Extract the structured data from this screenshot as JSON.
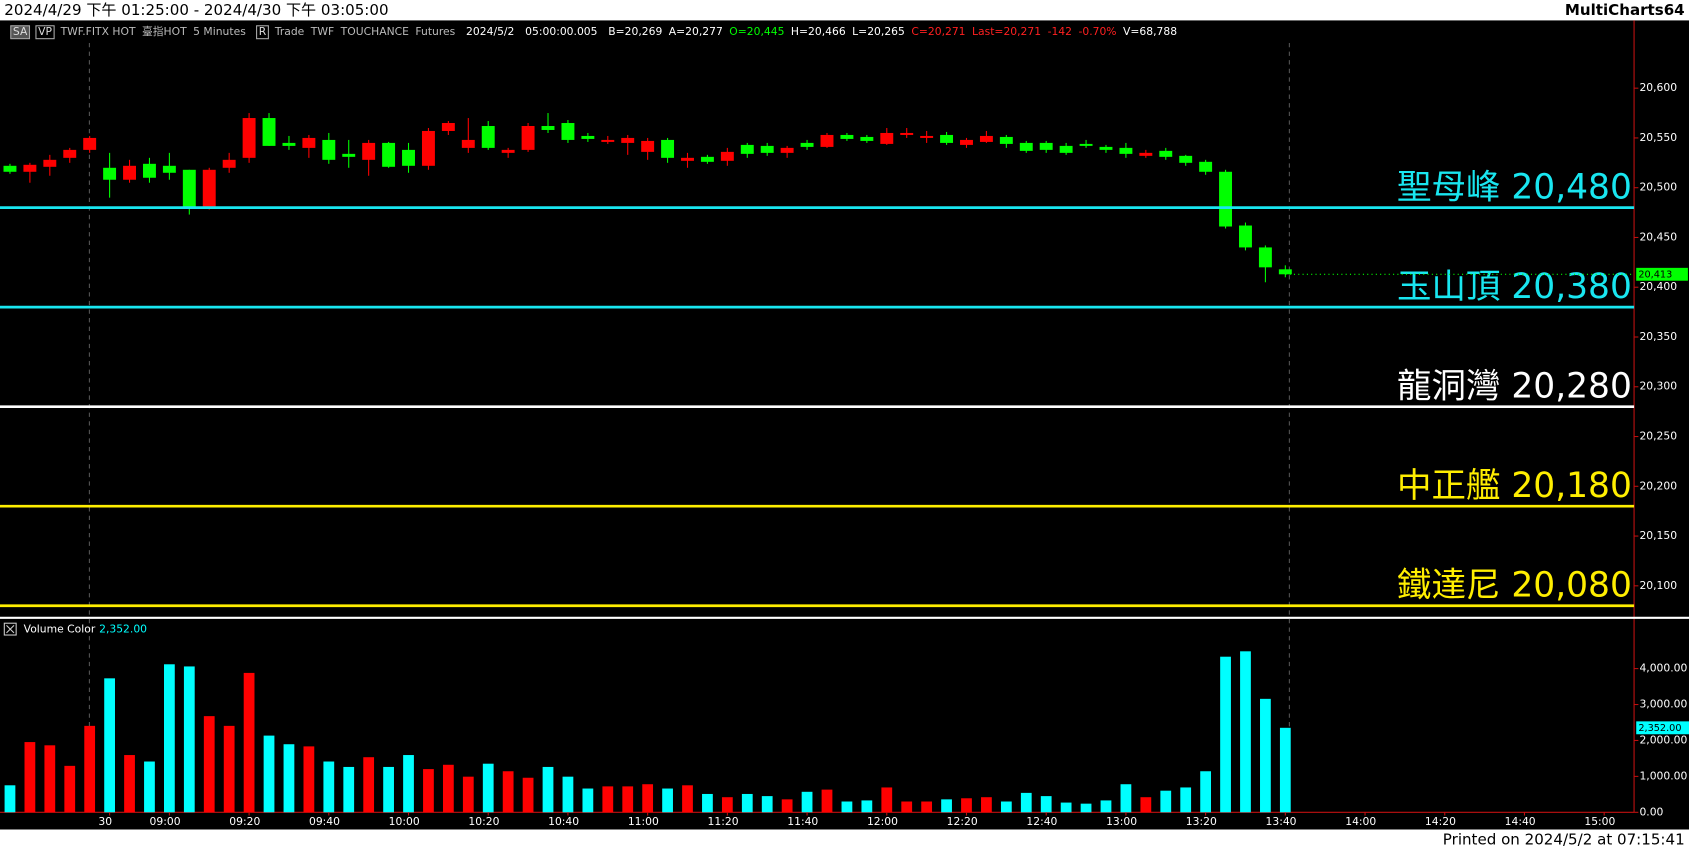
{
  "window": {
    "title": "2024/4/29 下午 01:25:00 - 2024/4/30 下午 03:05:00",
    "app": "MultiCharts64",
    "footer": "Printed on 2024/5/2 at 07:15:41"
  },
  "toolbar": [
    {
      "text": "SA",
      "color": "#dddddd"
    },
    {
      "text": "VP",
      "color": "#dddddd"
    },
    {
      "text": "TWF.FITX HOT",
      "color": "#bbbbbb"
    },
    {
      "text": "臺指HOT",
      "color": "#bbbbbb"
    },
    {
      "text": "5 Minutes",
      "color": "#bbbbbb"
    },
    {
      "text": "R",
      "color": "#dddddd"
    },
    {
      "text": "Trade",
      "color": "#bbbbbb"
    },
    {
      "text": "TWF",
      "color": "#bbbbbb"
    },
    {
      "text": "TOUCHANCE",
      "color": "#bbbbbb"
    },
    {
      "text": "Futures",
      "color": "#bbbbbb"
    },
    {
      "text": "2024/5/2",
      "color": "#ffffff"
    },
    {
      "text": "05:00:00.005",
      "color": "#ffffff"
    },
    {
      "text": "B=20,269",
      "color": "#ffffff"
    },
    {
      "text": "A=20,277",
      "color": "#ffffff"
    },
    {
      "text": "O=20,445",
      "color": "#00ff00"
    },
    {
      "text": "H=20,466",
      "color": "#ffffff"
    },
    {
      "text": "L=20,265",
      "color": "#ffffff"
    },
    {
      "text": "C=20,271",
      "color": "#ff2020"
    },
    {
      "text": "Last=20,271",
      "color": "#ff2020"
    },
    {
      "text": "-142",
      "color": "#ff2020"
    },
    {
      "text": "-0.70%",
      "color": "#ff2020"
    },
    {
      "text": "V=68,788",
      "color": "#ffffff"
    }
  ],
  "chart_data": [
    {
      "type": "candlestick",
      "up_color": "#ff0000",
      "down_color": "#00ff00",
      "open": [
        20522,
        20516,
        20521,
        20530,
        20538,
        20520,
        20508,
        20524,
        20522,
        20518,
        20481,
        20520,
        20530,
        20570,
        20545,
        20540,
        20548,
        20534,
        20528,
        20545,
        20538,
        20522,
        20557,
        20540,
        20562,
        20535,
        20538,
        20562,
        20565,
        20552,
        20546,
        20545,
        20536,
        20548,
        20527,
        20531,
        20527,
        20543,
        20542,
        20535,
        20545,
        20541,
        20553,
        20551,
        20544,
        20553,
        20550,
        20553,
        20543,
        20546,
        20551,
        20545,
        20545,
        20542,
        20544,
        20541,
        20540,
        20532,
        20537,
        20532,
        20526,
        20516,
        20462,
        20440,
        20418
      ],
      "high": [
        20524,
        20525,
        20533,
        20540,
        20552,
        20535,
        20528,
        20530,
        20535,
        20518,
        20520,
        20535,
        20575,
        20575,
        20552,
        20553,
        20555,
        20548,
        20548,
        20546,
        20545,
        20560,
        20567,
        20570,
        20567,
        20540,
        20565,
        20575,
        20568,
        20555,
        20552,
        20553,
        20550,
        20550,
        20535,
        20533,
        20540,
        20545,
        20545,
        20542,
        20548,
        20555,
        20555,
        20553,
        20560,
        20560,
        20557,
        20556,
        20550,
        20557,
        20553,
        20547,
        20547,
        20545,
        20548,
        20543,
        20545,
        20538,
        20540,
        20533,
        20528,
        20518,
        20465,
        20442,
        20422
      ],
      "low": [
        20514,
        20505,
        20512,
        20525,
        20535,
        20490,
        20505,
        20505,
        20508,
        20473,
        20478,
        20515,
        20525,
        20542,
        20538,
        20530,
        20524,
        20520,
        20512,
        20520,
        20515,
        20518,
        20553,
        20535,
        20538,
        20530,
        20536,
        20555,
        20545,
        20546,
        20544,
        20533,
        20528,
        20525,
        20520,
        20524,
        20522,
        20530,
        20532,
        20530,
        20538,
        20540,
        20547,
        20545,
        20543,
        20550,
        20545,
        20543,
        20540,
        20545,
        20540,
        20535,
        20535,
        20533,
        20540,
        20535,
        20530,
        20530,
        20528,
        20522,
        20513,
        20459,
        20437,
        20405,
        20410
      ],
      "close": [
        20516,
        20523,
        20528,
        20538,
        20550,
        20508,
        20522,
        20510,
        20515,
        20481,
        20518,
        20528,
        20570,
        20542,
        20542,
        20550,
        20528,
        20531,
        20545,
        20521,
        20522,
        20557,
        20565,
        20548,
        20540,
        20538,
        20562,
        20558,
        20548,
        20549,
        20548,
        20550,
        20547,
        20530,
        20530,
        20526,
        20536,
        20534,
        20535,
        20540,
        20541,
        20553,
        20549,
        20547,
        20555,
        20555,
        20552,
        20545,
        20548,
        20552,
        20544,
        20537,
        20538,
        20535,
        20542,
        20538,
        20534,
        20535,
        20531,
        20525,
        20516,
        20461,
        20440,
        20420,
        20413
      ],
      "ylim": [
        20070,
        20667
      ],
      "yticks": [
        {
          "value": 20100,
          "label": "20,100"
        },
        {
          "value": 20150,
          "label": "20,150"
        },
        {
          "value": 20200,
          "label": "20,200"
        },
        {
          "value": 20250,
          "label": "20,250"
        },
        {
          "value": 20300,
          "label": "20,300"
        },
        {
          "value": 20350,
          "label": "20,350"
        },
        {
          "value": 20400,
          "label": "20,400"
        },
        {
          "value": 20450,
          "label": "20,450"
        },
        {
          "value": 20500,
          "label": "20,500"
        },
        {
          "value": 20550,
          "label": "20,550"
        },
        {
          "value": 20600,
          "label": "20,600"
        }
      ],
      "levels": [
        {
          "name": "聖母峰",
          "value": 20480,
          "label": "20,480",
          "color": "#19e6f0"
        },
        {
          "name": "玉山頂",
          "value": 20380,
          "label": "20,380",
          "color": "#19e6f0"
        },
        {
          "name": "龍洞灣",
          "value": 20280,
          "label": "20,280",
          "color": "#ffffff"
        },
        {
          "name": "中正艦",
          "value": 20180,
          "label": "20,180",
          "color": "#ffee00"
        },
        {
          "name": "鐵達尼",
          "value": 20080,
          "label": "20,080",
          "color": "#ffee00"
        }
      ],
      "last": {
        "value": 20413,
        "label": "20,413",
        "color": "#00ff00"
      }
    },
    {
      "type": "bar",
      "title": "Volume Color",
      "legend_value": {
        "value": 2352,
        "label": "2,352.00"
      },
      "up_color": "#ff0000",
      "down_color": "#00ffff",
      "categories": [
        null,
        null,
        null,
        null,
        null,
        "30",
        null,
        null,
        "09:00",
        null,
        null,
        null,
        "09:20",
        null,
        null,
        null,
        "09:40",
        null,
        null,
        null,
        "10:00",
        null,
        null,
        null,
        "10:20",
        null,
        null,
        null,
        "10:40",
        null,
        null,
        null,
        "11:00",
        null,
        null,
        null,
        "11:20",
        null,
        null,
        null,
        "11:40",
        null,
        null,
        null,
        "12:00",
        null,
        null,
        null,
        "12:20",
        null,
        null,
        null,
        "12:40",
        null,
        null,
        null,
        "13:00",
        null,
        null,
        null,
        "13:20",
        null,
        null,
        null,
        "13:40",
        null,
        null,
        null,
        "14:00",
        null,
        null,
        null,
        "14:20",
        null,
        null,
        null,
        "14:40",
        null,
        null,
        null,
        "15:00",
        null
      ],
      "values": [
        752,
        1955,
        1865,
        1293,
        2406,
        3729,
        1594,
        1414,
        4120,
        4060,
        2677,
        2406,
        3880,
        2135,
        1895,
        1835,
        1414,
        1263,
        1534,
        1263,
        1594,
        1203,
        1323,
        992,
        1353,
        1143,
        962,
        1263,
        992,
        662,
        722,
        722,
        782,
        662,
        752,
        511,
        421,
        511,
        451,
        361,
        571,
        632,
        301,
        331,
        692,
        301,
        301,
        361,
        391,
        421,
        301,
        541,
        451,
        271,
        241,
        331,
        782,
        421,
        602,
        692,
        1143,
        4331,
        4481,
        3158,
        2352,
        null,
        null,
        null,
        null,
        null,
        null,
        null,
        null,
        null,
        null,
        null,
        null,
        null,
        null,
        null,
        null,
        null
      ],
      "ylim": [
        0,
        5323
      ],
      "yticks": [
        {
          "value": 0,
          "label": "0.00"
        },
        {
          "value": 1000,
          "label": "1,000.00"
        },
        {
          "value": 2000,
          "label": "2,000.00"
        },
        {
          "value": 3000,
          "label": "3,000.00"
        },
        {
          "value": 4000,
          "label": "4,000.00"
        }
      ]
    }
  ]
}
